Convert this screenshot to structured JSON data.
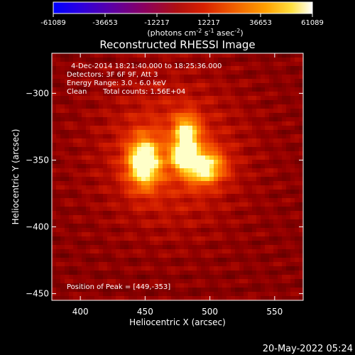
{
  "chart_data": {
    "type": "heatmap",
    "title": "Reconstructed RHESSI Image",
    "xlabel": "Heliocentric X (arcsec)",
    "ylabel": "Heliocentric Y (arcsec)",
    "xlim": [
      378,
      572
    ],
    "ylim": [
      -455,
      -270
    ],
    "x_ticks": [
      400,
      450,
      500,
      550
    ],
    "y_ticks": [
      -300,
      -350,
      -400,
      -450
    ],
    "colorbar": {
      "colormap": "hot",
      "range": [
        -61089,
        61089
      ],
      "ticks": [
        "-61089",
        "-36653",
        "-12217",
        "12217",
        "36653",
        "61089"
      ],
      "unit_base": "(photons cm",
      "unit_exp1": "-2",
      "unit_mid": " s",
      "unit_exp2": "-1",
      "unit_end": " asec",
      "unit_exp3": "-2",
      "unit_close": ")"
    },
    "annotations": {
      "time_range": "4-Dec-2014 18:21:40.000 to 18:25:36.000",
      "detectors": "Detectors: 3F 6F 9F, Att 3",
      "energy": "Energy Range: 3.0 - 6.0 keV",
      "method": "Clean",
      "counts": "Total counts: 1.56E+04",
      "peak": "Position of Peak = [449,-353]"
    },
    "sources": [
      {
        "x": 449,
        "y": -352,
        "sx": 9,
        "sy": 13,
        "amp": 1.0
      },
      {
        "x": 482,
        "y": -331,
        "sx": 7,
        "sy": 10,
        "amp": 0.85
      },
      {
        "x": 495,
        "y": -355,
        "sx": 11,
        "sy": 9,
        "amp": 0.9
      },
      {
        "x": 478,
        "y": -348,
        "sx": 6,
        "sy": 6,
        "amp": 0.6
      },
      {
        "x": 470,
        "y": -345,
        "sx": 38,
        "sy": 38,
        "amp": 0.35
      }
    ]
  },
  "footer": {
    "date": "20-May-2022 05:24"
  }
}
